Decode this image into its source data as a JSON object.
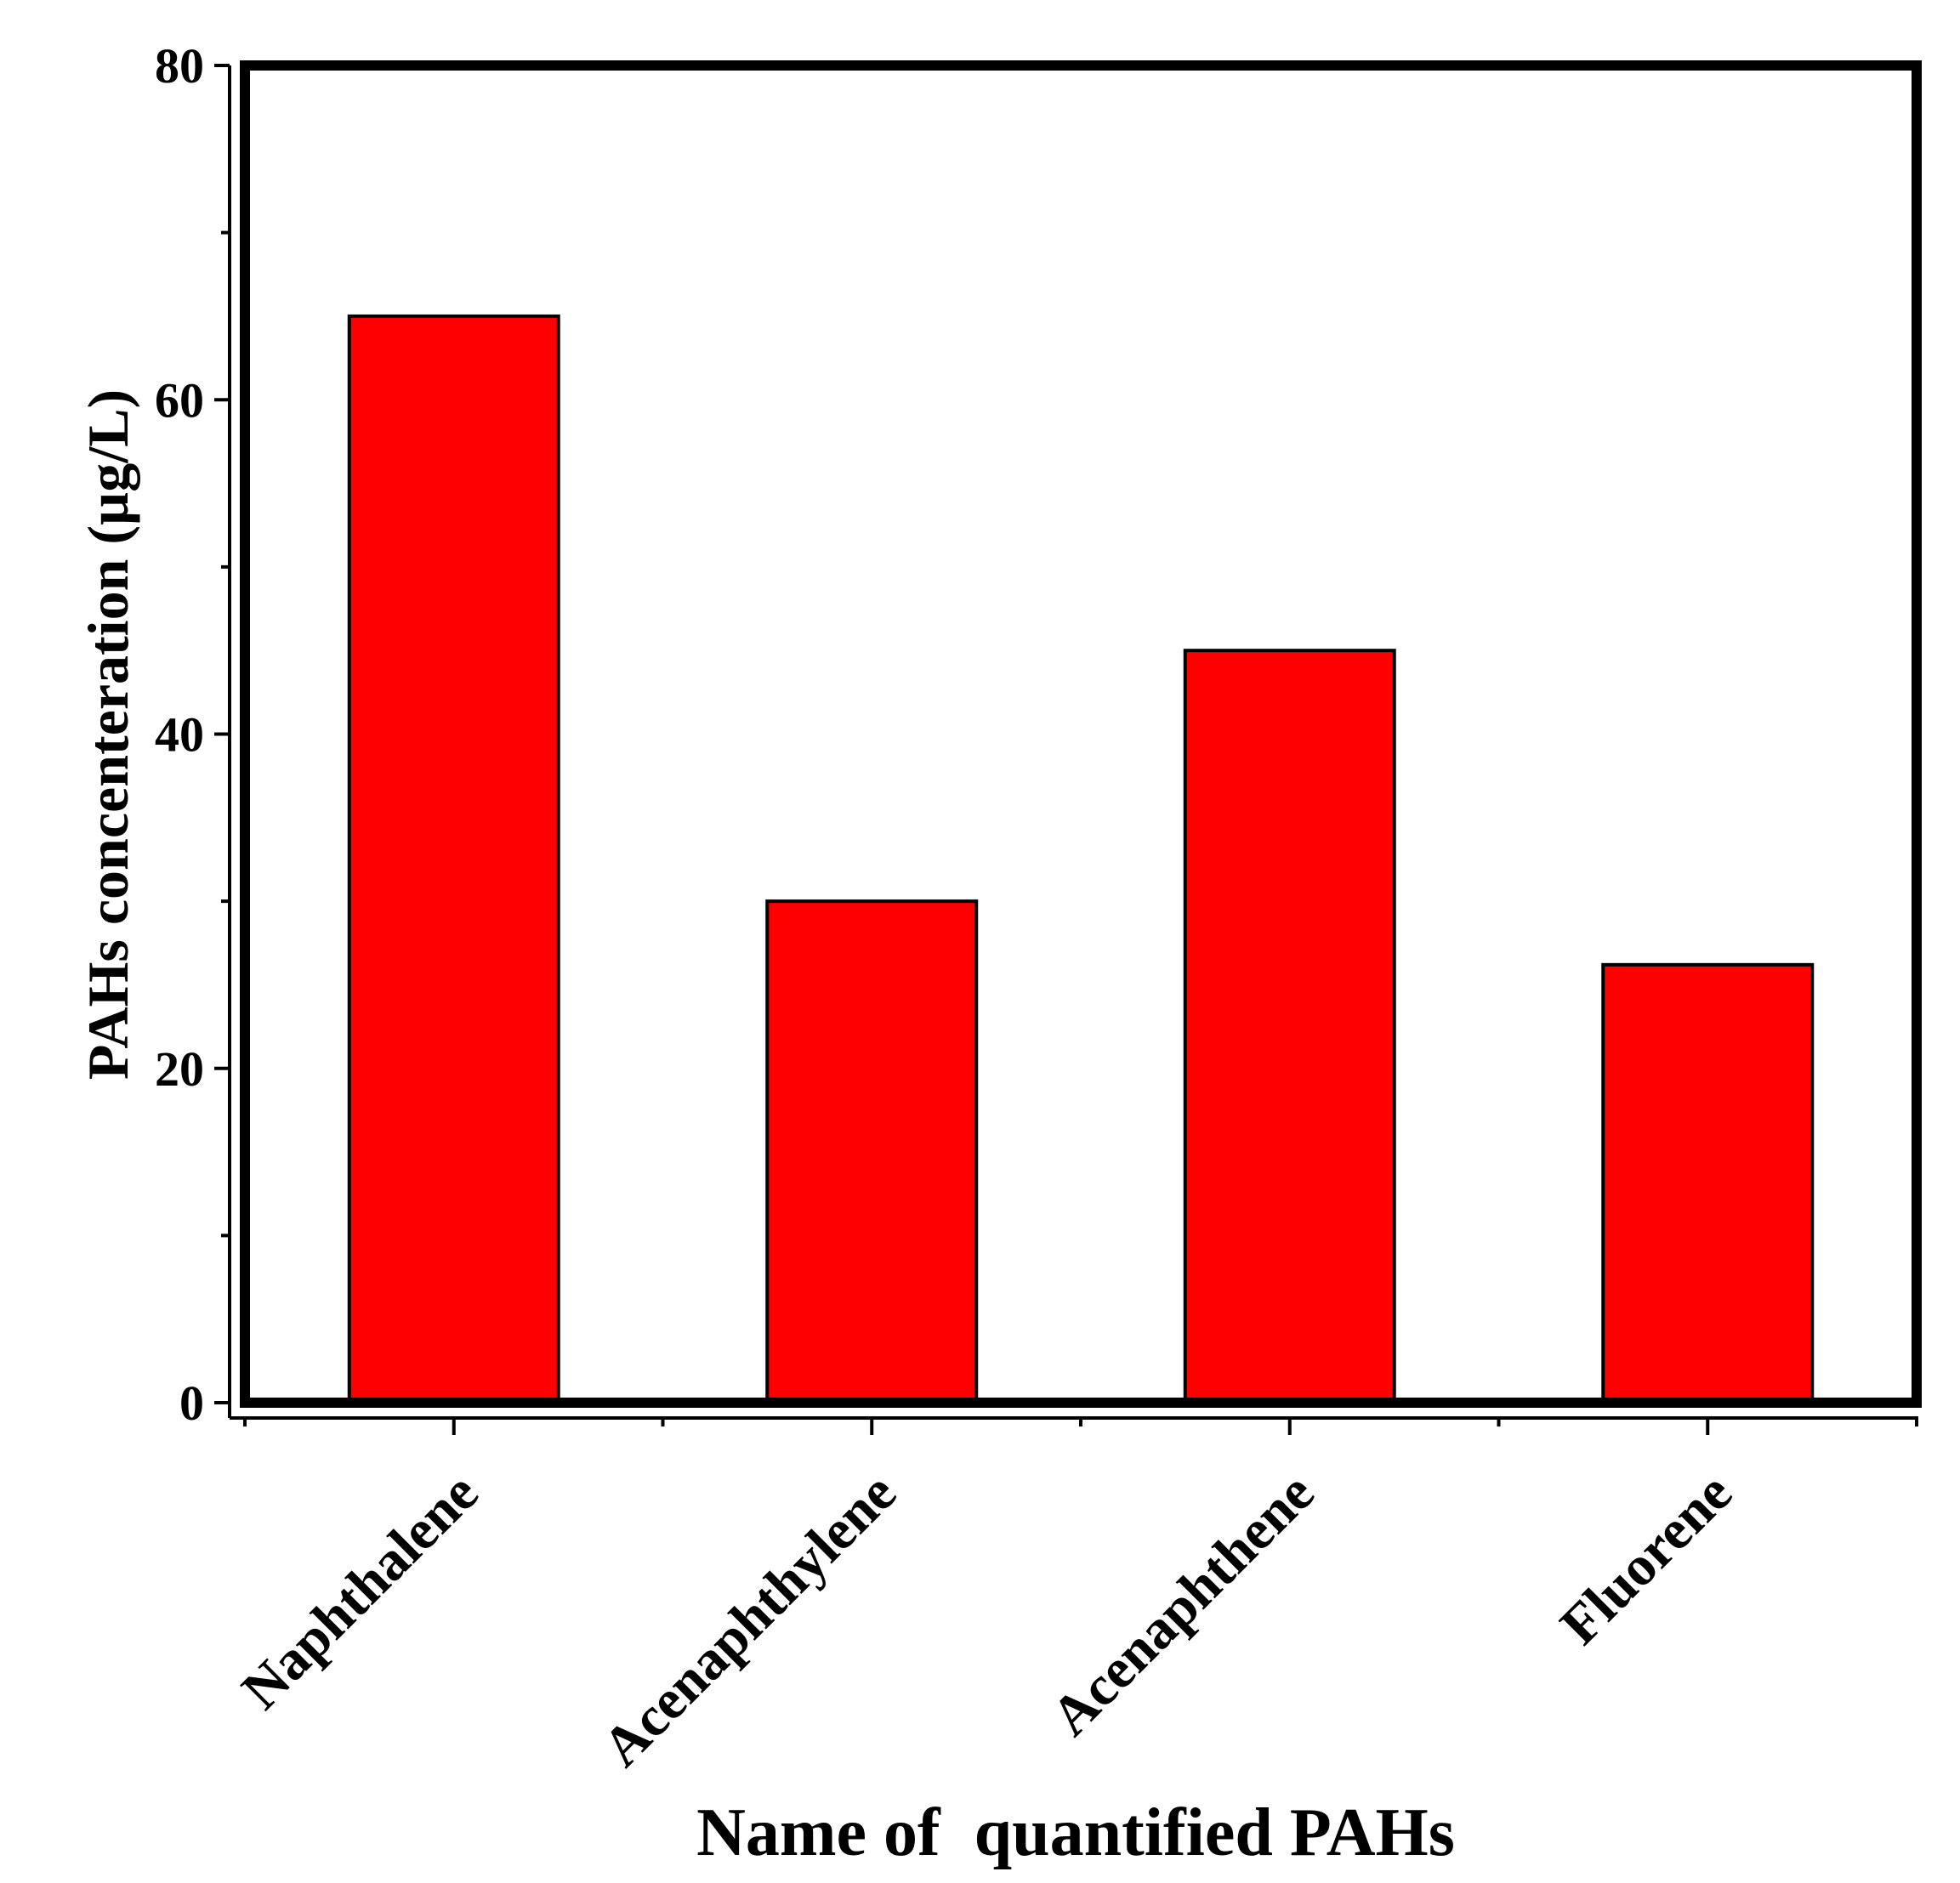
{
  "chart_data": {
    "type": "bar",
    "title": "",
    "xlabel": "Name of  quantified PAHs",
    "ylabel": "PAHs concenteration (µg/L)",
    "categories": [
      "Naphthalene",
      "Acenaphthylene",
      "Acenaphthene",
      "Fluorene"
    ],
    "values": [
      65,
      30,
      45,
      26.2
    ],
    "ylim": [
      0,
      80
    ],
    "yticks": [
      "0",
      "20",
      "40",
      "60",
      "80"
    ],
    "ytick_values": [
      0,
      20,
      40,
      60,
      80
    ],
    "bar_color": "#ff0000",
    "grid": false,
    "legend": "none"
  }
}
